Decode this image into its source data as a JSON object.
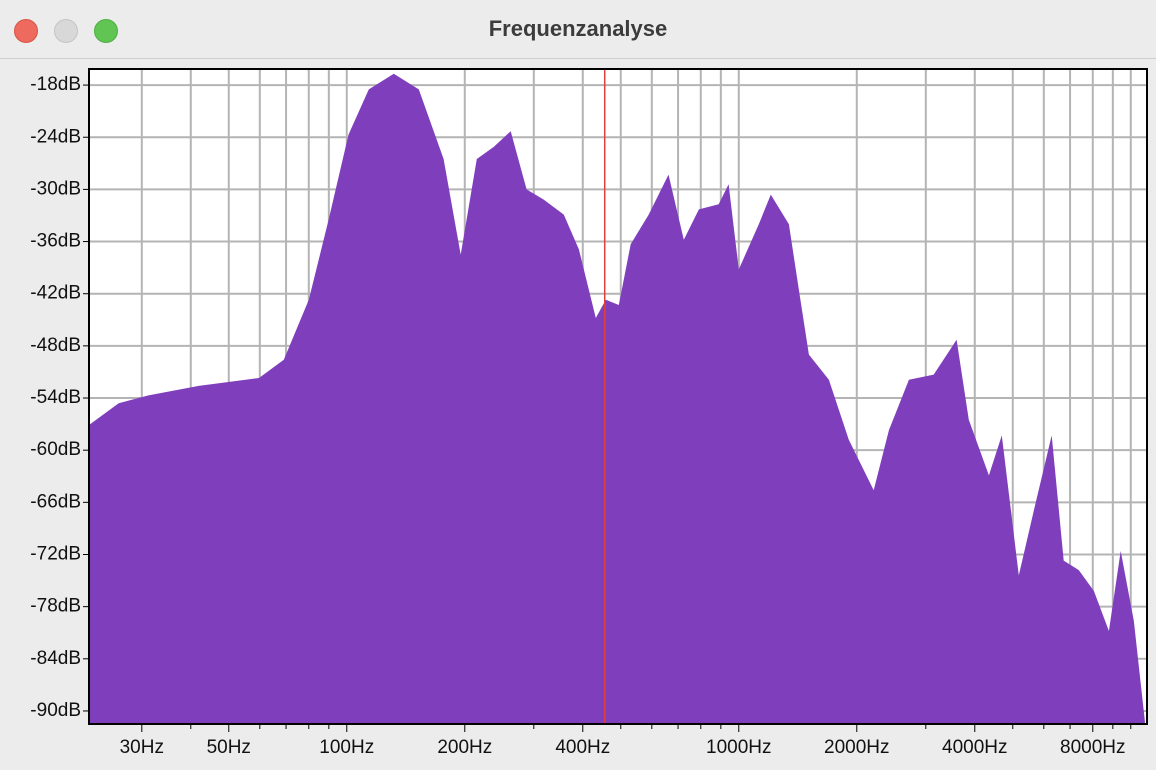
{
  "window_title": "Frequenzanalyse",
  "chart_data": {
    "type": "area",
    "xscale": "log",
    "color": "#7f3fbd",
    "grid": true,
    "x": [
      22,
      26.2,
      31.2,
      41.9,
      59.7,
      69.1,
      80,
      89.9,
      101,
      113.8,
      131.8,
      152.7,
      176.6,
      195.3,
      214.7,
      237.3,
      262,
      287.6,
      318.4,
      357.8,
      391,
      431.8,
      458,
      494.3,
      530,
      589,
      662,
      724,
      791,
      889,
      942,
      1000,
      1125,
      1207,
      1342,
      1423,
      1510,
      1698,
      1909,
      2209,
      2415,
      2716,
      3142,
      3595,
      3863,
      4345,
      4688,
      5180,
      5661,
      6285,
      6745,
      7367,
      8051,
      8796,
      9426,
      10181,
      10865
    ],
    "values": [
      -57.1,
      -54.6,
      -53.7,
      -52.6,
      -51.7,
      -49.6,
      -42.7,
      -33.5,
      -23.7,
      -18.5,
      -16.7,
      -18.5,
      -26.5,
      -37.5,
      -26.5,
      -25.1,
      -23.3,
      -30,
      -31.2,
      -32.9,
      -36.9,
      -44.8,
      -42.7,
      -43.3,
      -36.3,
      -32.9,
      -28.3,
      -35.8,
      -32.3,
      -31.7,
      -29.4,
      -39.2,
      -34,
      -30.6,
      -34,
      -41.5,
      -49,
      -51.9,
      -58.8,
      -64.6,
      -57.7,
      -51.9,
      -51.3,
      -47.3,
      -56.5,
      -62.9,
      -58.3,
      -74.4,
      -66.9,
      -58.3,
      -72.7,
      -73.8,
      -76.2,
      -80.8,
      -71.6,
      -79.6,
      -91.2
    ],
    "xlim": [
      22,
      11000
    ],
    "ylim": [
      -91.5,
      -16.15
    ],
    "xticks": [
      {
        "value": 30,
        "label": "30Hz"
      },
      {
        "value": 50,
        "label": "50Hz"
      },
      {
        "value": 100,
        "label": "100Hz"
      },
      {
        "value": 200,
        "label": "200Hz"
      },
      {
        "value": 400,
        "label": "400Hz"
      },
      {
        "value": 1000,
        "label": "1000Hz"
      },
      {
        "value": 2000,
        "label": "2000Hz"
      },
      {
        "value": 4000,
        "label": "4000Hz"
      },
      {
        "value": 8000,
        "label": "8000Hz"
      }
    ],
    "x_minor_ticks": [
      40,
      60,
      70,
      80,
      90,
      300,
      500,
      600,
      700,
      800,
      900,
      3000,
      5000,
      6000,
      7000,
      9000,
      10000
    ],
    "yticks": [
      {
        "value": -18,
        "label": "-18dB"
      },
      {
        "value": -24,
        "label": "-24dB"
      },
      {
        "value": -30,
        "label": "-30dB"
      },
      {
        "value": -36,
        "label": "-36dB"
      },
      {
        "value": -42,
        "label": "-42dB"
      },
      {
        "value": -48,
        "label": "-48dB"
      },
      {
        "value": -54,
        "label": "-54dB"
      },
      {
        "value": -60,
        "label": "-60dB"
      },
      {
        "value": -66,
        "label": "-66dB"
      },
      {
        "value": -72,
        "label": "-72dB"
      },
      {
        "value": -78,
        "label": "-78dB"
      },
      {
        "value": -84,
        "label": "-84dB"
      },
      {
        "value": -90,
        "label": "-90dB"
      }
    ],
    "cursor_x": 455,
    "cursor_color": "#e0403a"
  }
}
